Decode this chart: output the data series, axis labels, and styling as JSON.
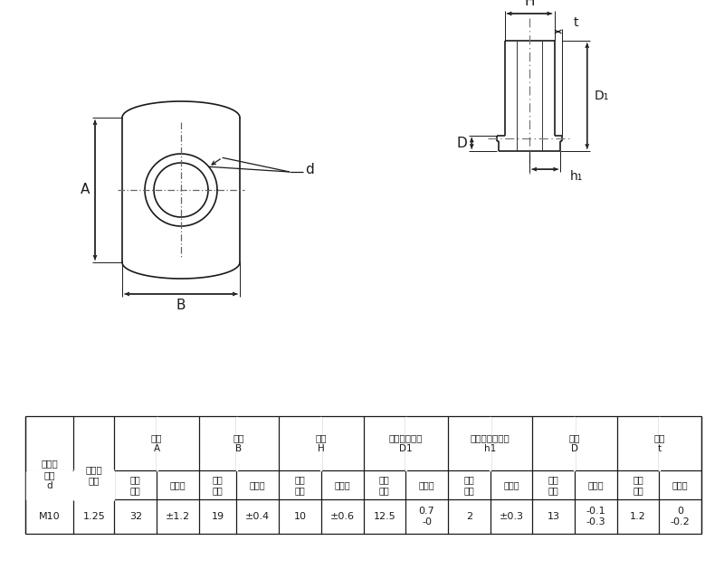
{
  "bg_color": "#ffffff",
  "line_color": "#1a1a1a",
  "table_data": {
    "groups": [
      {
        "label": "横幅\nA",
        "cols": [
          "基準\n寸法",
          "許容差"
        ],
        "values": [
          "32",
          "±1.2"
        ]
      },
      {
        "label": "縦幅\nB",
        "cols": [
          "基準\n寸法",
          "許容差"
        ],
        "values": [
          "19",
          "±0.4"
        ]
      },
      {
        "label": "高さ\nH",
        "cols": [
          "基準\n寸法",
          "許容差"
        ],
        "values": [
          "10",
          "±0.6"
        ]
      },
      {
        "label": "パイロット径\nD1",
        "cols": [
          "基準\n寸法",
          "許容差"
        ],
        "values": [
          "12.5",
          "0.7\n-0"
        ]
      },
      {
        "label": "パイロット高さ\nh1",
        "cols": [
          "基準\n寸法",
          "許容差"
        ],
        "values": [
          "2",
          "±0.3"
        ]
      },
      {
        "label": "外径\nD",
        "cols": [
          "基準\n寸法",
          "許容差"
        ],
        "values": [
          "13",
          "-0.1\n-0.3"
        ]
      },
      {
        "label": "板厚\nt",
        "cols": [
          "基準\n寸法",
          "許容差"
        ],
        "values": [
          "1.2",
          "0\n-0.2"
        ]
      }
    ],
    "fixed_cols": [
      {
        "label": "ねじの\n呼び\nd",
        "value": "M10"
      },
      {
        "label": "ピッチ\n細目",
        "value": "1.25"
      }
    ]
  }
}
